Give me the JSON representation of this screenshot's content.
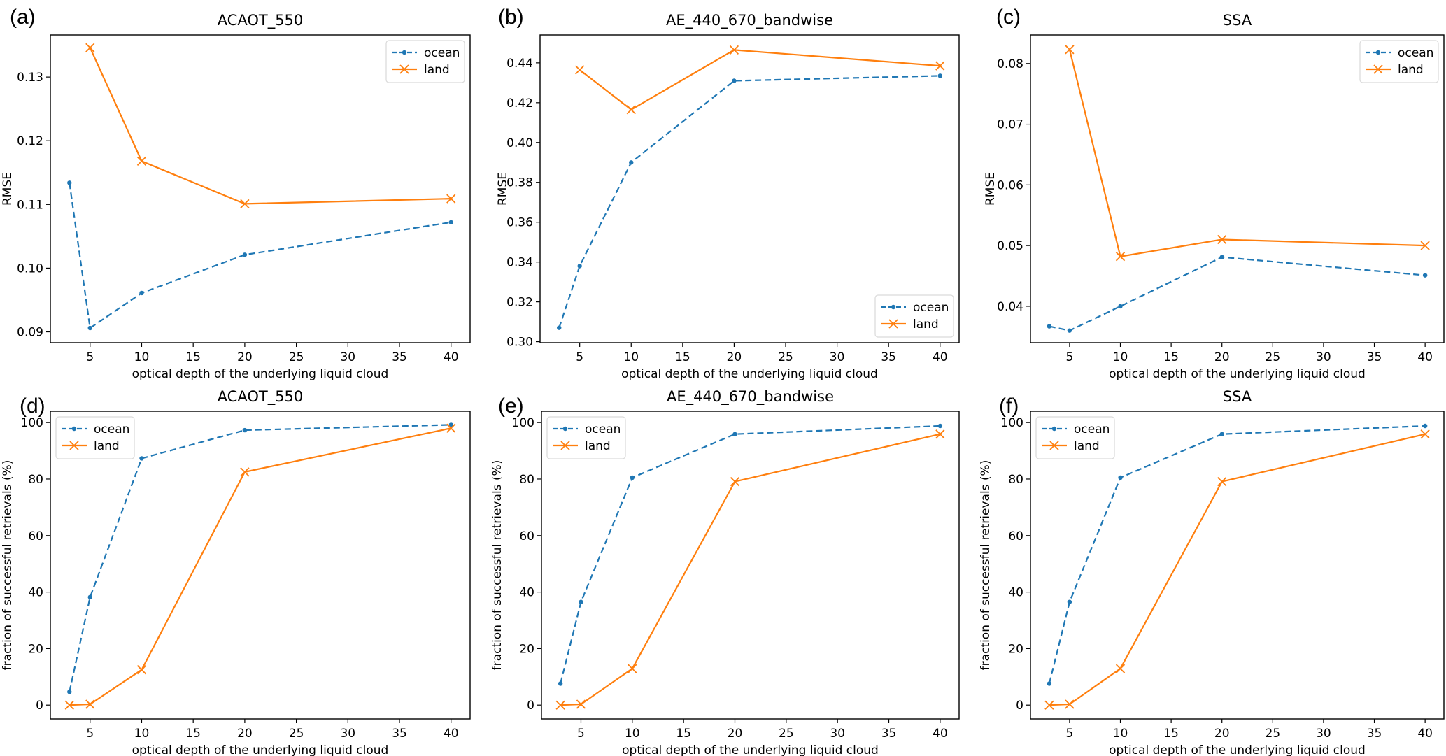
{
  "figure": {
    "series_colors": {
      "ocean": "#1f77b4",
      "land": "#ff7f0e"
    }
  },
  "chart_data": [
    {
      "panel": "(a)",
      "type": "line",
      "title": "ACAOT_550",
      "xlabel": "optical depth of the underlying liquid cloud",
      "ylabel": "RMSE",
      "x": [
        3,
        5,
        10,
        20,
        40
      ],
      "xticks": [
        5,
        10,
        15,
        20,
        25,
        30,
        35,
        40
      ],
      "xtick_labels": [
        "5",
        "10",
        "15",
        "20",
        "25",
        "30",
        "35",
        "40"
      ],
      "xlim": [
        1.15,
        41.85
      ],
      "yticks": [
        0.09,
        0.1,
        0.11,
        0.12,
        0.13
      ],
      "ytick_labels": [
        "0.09",
        "0.10",
        "0.11",
        "0.12",
        "0.13"
      ],
      "ylim": [
        0.0883,
        0.1366
      ],
      "grid": false,
      "legend_position": "upper-right",
      "series": [
        {
          "name": "ocean",
          "style": "dashed",
          "marker": "dot",
          "x": [
            3,
            5,
            10,
            20,
            40
          ],
          "values": [
            0.1134,
            0.0906,
            0.0961,
            0.1021,
            0.1072
          ]
        },
        {
          "name": "land",
          "style": "solid",
          "marker": "x",
          "x": [
            5,
            10,
            20,
            40
          ],
          "values": [
            0.1346,
            0.1168,
            0.1101,
            0.1109
          ]
        }
      ]
    },
    {
      "panel": "(b)",
      "type": "line",
      "title": "AE_440_670_bandwise",
      "xlabel": "optical depth of the underlying liquid cloud",
      "ylabel": "RMSE",
      "x": [
        3,
        5,
        10,
        20,
        40
      ],
      "xticks": [
        5,
        10,
        15,
        20,
        25,
        30,
        35,
        40
      ],
      "xtick_labels": [
        "5",
        "10",
        "15",
        "20",
        "25",
        "30",
        "35",
        "40"
      ],
      "xlim": [
        1.15,
        41.85
      ],
      "yticks": [
        0.3,
        0.32,
        0.34,
        0.36,
        0.38,
        0.4,
        0.42,
        0.44
      ],
      "ytick_labels": [
        "0.30",
        "0.32",
        "0.34",
        "0.36",
        "0.38",
        "0.40",
        "0.42",
        "0.44"
      ],
      "ylim": [
        0.2995,
        0.454
      ],
      "grid": false,
      "legend_position": "lower-right",
      "series": [
        {
          "name": "ocean",
          "style": "dashed",
          "marker": "dot",
          "x": [
            3,
            5,
            10,
            20,
            40
          ],
          "values": [
            0.307,
            0.338,
            0.39,
            0.431,
            0.4335
          ]
        },
        {
          "name": "land",
          "style": "solid",
          "marker": "x",
          "x": [
            5,
            10,
            20,
            40
          ],
          "values": [
            0.4365,
            0.4165,
            0.4465,
            0.4385
          ]
        }
      ]
    },
    {
      "panel": "(c)",
      "type": "line",
      "title": "SSA",
      "xlabel": "optical depth of the underlying liquid cloud",
      "ylabel": "RMSE",
      "x": [
        3,
        5,
        10,
        20,
        40
      ],
      "xticks": [
        5,
        10,
        15,
        20,
        25,
        30,
        35,
        40
      ],
      "xtick_labels": [
        "5",
        "10",
        "15",
        "20",
        "25",
        "30",
        "35",
        "40"
      ],
      "xlim": [
        1.15,
        41.85
      ],
      "yticks": [
        0.04,
        0.05,
        0.06,
        0.07,
        0.08
      ],
      "ytick_labels": [
        "0.04",
        "0.05",
        "0.06",
        "0.07",
        "0.08"
      ],
      "ylim": [
        0.034,
        0.0847
      ],
      "grid": false,
      "legend_position": "upper-right",
      "series": [
        {
          "name": "ocean",
          "style": "dashed",
          "marker": "dot",
          "x": [
            3,
            5,
            10,
            20,
            40
          ],
          "values": [
            0.0367,
            0.036,
            0.04,
            0.0481,
            0.0451
          ]
        },
        {
          "name": "land",
          "style": "solid",
          "marker": "x",
          "x": [
            5,
            10,
            20,
            40
          ],
          "values": [
            0.0823,
            0.0482,
            0.051,
            0.05
          ]
        }
      ]
    },
    {
      "panel": "(d)",
      "type": "line",
      "title": "ACAOT_550",
      "xlabel": "optical depth of the underlying liquid cloud",
      "ylabel": "fraction of successful retrievals (%)",
      "x": [
        3,
        5,
        10,
        20,
        40
      ],
      "xticks": [
        5,
        10,
        15,
        20,
        25,
        30,
        35,
        40
      ],
      "xtick_labels": [
        "5",
        "10",
        "15",
        "20",
        "25",
        "30",
        "35",
        "40"
      ],
      "xlim": [
        1.15,
        41.85
      ],
      "yticks": [
        0,
        20,
        40,
        60,
        80,
        100
      ],
      "ytick_labels": [
        "0",
        "20",
        "40",
        "60",
        "80",
        "100"
      ],
      "ylim": [
        -4.9,
        104
      ],
      "grid": false,
      "legend_position": "upper-left",
      "series": [
        {
          "name": "ocean",
          "style": "dashed",
          "marker": "dot",
          "x": [
            3,
            5,
            10,
            20,
            40
          ],
          "values": [
            4.7,
            38.2,
            87.3,
            97.3,
            99.2
          ]
        },
        {
          "name": "land",
          "style": "solid",
          "marker": "x",
          "x": [
            3,
            5,
            10,
            20,
            40
          ],
          "values": [
            0.0,
            0.3,
            12.5,
            82.5,
            98.0
          ]
        }
      ]
    },
    {
      "panel": "(e)",
      "type": "line",
      "title": "AE_440_670_bandwise",
      "xlabel": "optical depth of the underlying liquid cloud",
      "ylabel": "fraction of successful retrievals (%)",
      "x": [
        3,
        5,
        10,
        20,
        40
      ],
      "xticks": [
        5,
        10,
        15,
        20,
        25,
        30,
        35,
        40
      ],
      "xtick_labels": [
        "5",
        "10",
        "15",
        "20",
        "25",
        "30",
        "35",
        "40"
      ],
      "xlim": [
        1.15,
        41.85
      ],
      "yticks": [
        0,
        20,
        40,
        60,
        80,
        100
      ],
      "ytick_labels": [
        "0",
        "20",
        "40",
        "60",
        "80",
        "100"
      ],
      "ylim": [
        -4.9,
        104
      ],
      "grid": false,
      "legend_position": "upper-left",
      "series": [
        {
          "name": "ocean",
          "style": "dashed",
          "marker": "dot",
          "x": [
            3,
            5,
            10,
            20,
            40
          ],
          "values": [
            7.6,
            36.5,
            80.5,
            95.9,
            98.8
          ]
        },
        {
          "name": "land",
          "style": "solid",
          "marker": "x",
          "x": [
            3,
            5,
            10,
            20,
            40
          ],
          "values": [
            0.0,
            0.3,
            12.9,
            79.1,
            95.9
          ]
        }
      ]
    },
    {
      "panel": "(f)",
      "type": "line",
      "title": "SSA",
      "xlabel": "optical depth of the underlying liquid cloud",
      "ylabel": "fraction of successful retrievals (%)",
      "x": [
        3,
        5,
        10,
        20,
        40
      ],
      "xticks": [
        5,
        10,
        15,
        20,
        25,
        30,
        35,
        40
      ],
      "xtick_labels": [
        "5",
        "10",
        "15",
        "20",
        "25",
        "30",
        "35",
        "40"
      ],
      "xlim": [
        1.15,
        41.85
      ],
      "yticks": [
        0,
        20,
        40,
        60,
        80,
        100
      ],
      "ytick_labels": [
        "0",
        "20",
        "40",
        "60",
        "80",
        "100"
      ],
      "ylim": [
        -4.9,
        104
      ],
      "grid": false,
      "legend_position": "upper-left",
      "series": [
        {
          "name": "ocean",
          "style": "dashed",
          "marker": "dot",
          "x": [
            3,
            5,
            10,
            20,
            40
          ],
          "values": [
            7.6,
            36.5,
            80.5,
            95.9,
            98.8
          ]
        },
        {
          "name": "land",
          "style": "solid",
          "marker": "x",
          "x": [
            3,
            5,
            10,
            20,
            40
          ],
          "values": [
            0.0,
            0.3,
            12.9,
            79.1,
            95.9
          ]
        }
      ]
    }
  ]
}
